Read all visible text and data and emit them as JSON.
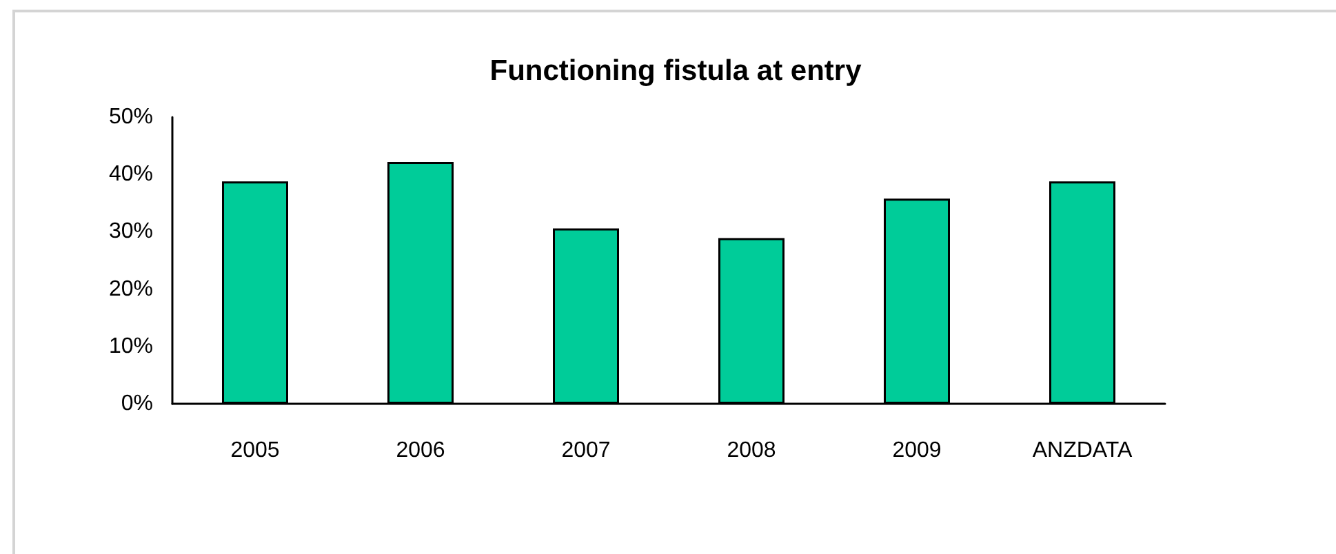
{
  "chart_data": {
    "type": "bar",
    "title": "Functioning fistula at entry",
    "categories": [
      "2005",
      "2006",
      "2007",
      "2008",
      "2009",
      "ANZDATA"
    ],
    "values": [
      38.8,
      42.2,
      30.6,
      28.9,
      35.8,
      38.8
    ],
    "color": "#00cc99",
    "ylim": [
      0,
      50
    ],
    "yticks": [
      {
        "value": 0,
        "label": "0%"
      },
      {
        "value": 10,
        "label": "10%"
      },
      {
        "value": 20,
        "label": "20%"
      },
      {
        "value": 30,
        "label": "30%"
      },
      {
        "value": 40,
        "label": "40%"
      },
      {
        "value": 50,
        "label": "50%"
      }
    ],
    "grid": false
  }
}
